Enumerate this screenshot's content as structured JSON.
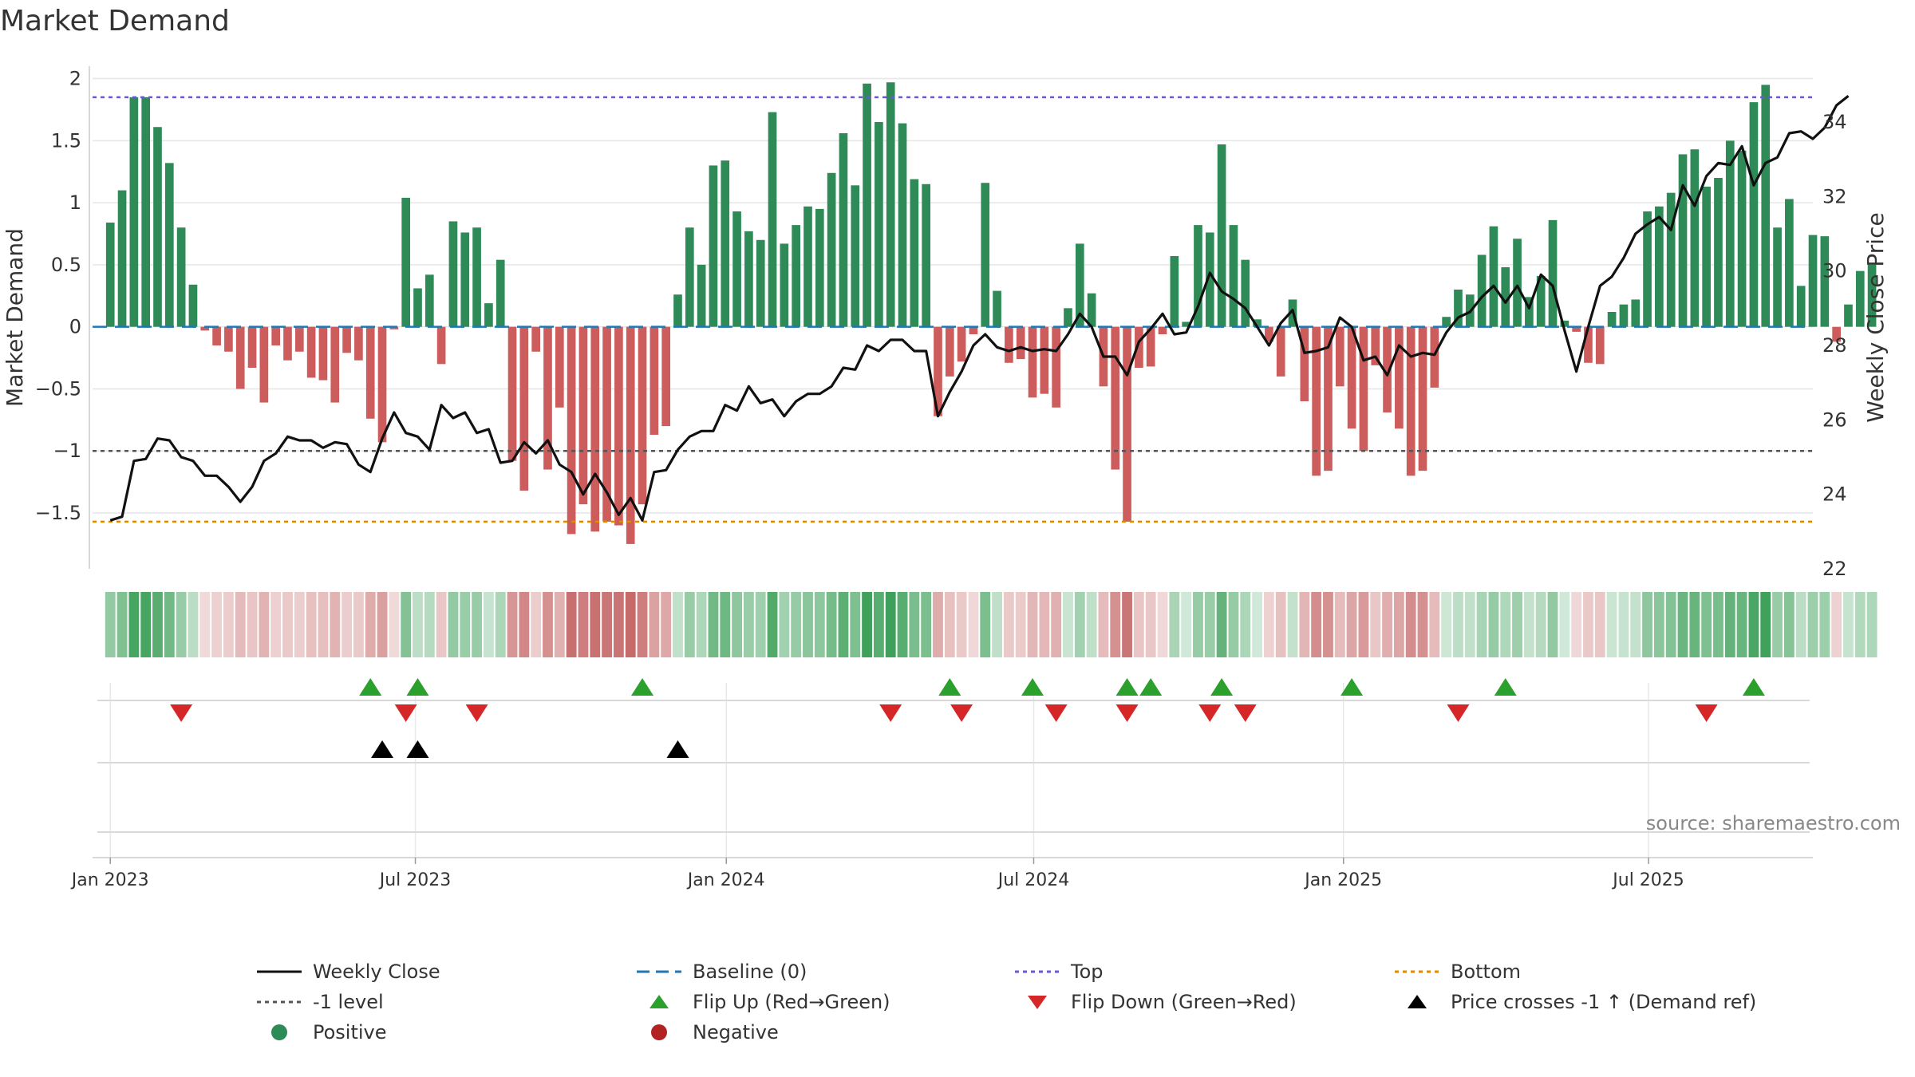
{
  "title": "Market Demand",
  "source": "source: sharemaestro.com",
  "colors": {
    "positive": "#2e8b57",
    "negative": "#cd5c5c",
    "price": "#111111",
    "baseline": "#1f77b4",
    "top": "#6a5acd",
    "minus1": "#555555",
    "bottom": "#e08a00",
    "flip_up": "#2ca02c",
    "flip_down": "#d62728",
    "cross": "#000000",
    "grid": "#e6e6e6"
  },
  "legend": [
    {
      "label": "Weekly Close",
      "kind": "line-solid",
      "color": "#111111"
    },
    {
      "label": "Baseline (0)",
      "kind": "line-dash",
      "color": "#1f77b4"
    },
    {
      "label": "Top",
      "kind": "line-dot",
      "color": "#6a5acd"
    },
    {
      "label": "Bottom",
      "kind": "line-dot",
      "color": "#e08a00"
    },
    {
      "label": "-1 level",
      "kind": "line-dot",
      "color": "#555555"
    },
    {
      "label": "Flip Up (Red→Green)",
      "kind": "tri-up",
      "color": "#2ca02c"
    },
    {
      "label": "Flip Down (Green→Red)",
      "kind": "tri-down",
      "color": "#d62728"
    },
    {
      "label": "Price crosses -1 ↑ (Demand ref)",
      "kind": "tri-up",
      "color": "#000000"
    },
    {
      "label": "Positive",
      "kind": "dot",
      "color": "#2e8b57"
    },
    {
      "label": "Negative",
      "kind": "dot",
      "color": "#b22222"
    }
  ],
  "chart_data": {
    "type": "bar",
    "title": "Market Demand",
    "ylabel": "Market Demand",
    "y2label": "Weekly Close Price",
    "ylim": [
      -1.95,
      2.1
    ],
    "y2lim": [
      22,
      35.5
    ],
    "yticks": [
      -1.5,
      -1,
      -0.5,
      0,
      0.5,
      1,
      1.5,
      2
    ],
    "ytick_labels": [
      "−1.5",
      "−1",
      "−0.5",
      "0",
      "0.5",
      "1",
      "1.5",
      "2"
    ],
    "y2ticks": [
      22,
      24,
      26,
      28,
      30,
      32,
      34
    ],
    "y2tick_labels": [
      "22",
      "24",
      "26",
      "28",
      "30",
      "32",
      "34"
    ],
    "x_start_week": -1.5,
    "x_end_week": 144,
    "xticks": [
      {
        "week": 0,
        "label": "Jan 2023"
      },
      {
        "week": 25.8,
        "label": "Jul 2023"
      },
      {
        "week": 52.1,
        "label": "Jan 2024"
      },
      {
        "week": 78.1,
        "label": "Jul 2024"
      },
      {
        "week": 104.3,
        "label": "Jan 2025"
      },
      {
        "week": 130.1,
        "label": "Jul 2025"
      }
    ],
    "reference_lines": {
      "baseline": 0,
      "top": 1.85,
      "minus1": -1,
      "bottom": -1.57
    },
    "demand": [
      0.84,
      1.1,
      1.85,
      1.85,
      1.61,
      1.32,
      0.8,
      0.34,
      -0.03,
      -0.15,
      -0.2,
      -0.5,
      -0.33,
      -0.61,
      -0.15,
      -0.27,
      -0.2,
      -0.41,
      -0.43,
      -0.61,
      -0.21,
      -0.27,
      -0.74,
      -0.93,
      -0.02,
      1.04,
      0.31,
      0.42,
      -0.3,
      0.85,
      0.76,
      0.8,
      0.19,
      0.54,
      -1.08,
      -1.32,
      -0.2,
      -1.15,
      -0.65,
      -1.67,
      -1.43,
      -1.65,
      -1.57,
      -1.6,
      -1.75,
      -1.43,
      -0.87,
      -0.8,
      0.26,
      0.8,
      0.5,
      1.3,
      1.34,
      0.93,
      0.77,
      0.7,
      1.73,
      0.67,
      0.82,
      0.97,
      0.95,
      1.24,
      1.56,
      1.14,
      1.96,
      1.65,
      1.97,
      1.64,
      1.19,
      1.15,
      -0.72,
      -0.4,
      -0.28,
      -0.06,
      1.16,
      0.29,
      -0.29,
      -0.26,
      -0.57,
      -0.54,
      -0.65,
      0.15,
      0.67,
      0.27,
      -0.48,
      -1.15,
      -1.57,
      -0.33,
      -0.32,
      -0.06,
      0.57,
      0.04,
      0.82,
      0.76,
      1.47,
      0.82,
      0.54,
      0.06,
      -0.12,
      -0.4,
      0.22,
      -0.6,
      -1.2,
      -1.16,
      -0.48,
      -0.82,
      -1.0,
      -0.31,
      -0.69,
      -0.82,
      -1.2,
      -1.16,
      -0.49,
      0.08,
      0.3,
      0.26,
      0.58,
      0.81,
      0.48,
      0.71,
      0.24,
      0.41,
      0.86,
      0.05,
      -0.04,
      -0.29,
      -0.3,
      0.12,
      0.18,
      0.22,
      0.93,
      0.97,
      1.08,
      1.39,
      1.43,
      1.13,
      1.2,
      1.5,
      1.42,
      1.81,
      1.95,
      0.8,
      1.03,
      0.33,
      0.74,
      0.73,
      -0.12,
      0.18,
      0.45,
      0.5
    ],
    "price": [
      23.3,
      23.4,
      24.9,
      24.95,
      25.5,
      25.45,
      25.0,
      24.9,
      24.5,
      24.5,
      24.2,
      23.8,
      24.2,
      24.9,
      25.1,
      25.55,
      25.45,
      25.45,
      25.25,
      25.4,
      25.35,
      24.8,
      24.6,
      25.5,
      26.2,
      25.65,
      25.55,
      25.2,
      26.4,
      26.05,
      26.2,
      25.65,
      25.75,
      24.85,
      24.9,
      25.4,
      25.1,
      25.45,
      24.8,
      24.6,
      24.0,
      24.55,
      24.05,
      23.45,
      23.9,
      23.3,
      24.6,
      24.65,
      25.2,
      25.55,
      25.7,
      25.7,
      26.4,
      26.25,
      26.9,
      26.45,
      26.55,
      26.1,
      26.5,
      26.7,
      26.7,
      26.9,
      27.4,
      27.35,
      28.0,
      27.85,
      28.15,
      28.15,
      27.85,
      27.85,
      26.1,
      26.75,
      27.3,
      28.0,
      28.3,
      27.95,
      27.85,
      27.95,
      27.85,
      27.9,
      27.85,
      28.3,
      28.85,
      28.5,
      27.7,
      27.7,
      27.2,
      28.1,
      28.45,
      28.85,
      28.3,
      28.35,
      29.05,
      29.95,
      29.45,
      29.25,
      29.0,
      28.5,
      28.0,
      28.6,
      28.95,
      27.8,
      27.85,
      27.95,
      28.75,
      28.5,
      27.6,
      27.7,
      27.2,
      28.0,
      27.7,
      27.8,
      27.75,
      28.35,
      28.75,
      28.9,
      29.3,
      29.6,
      29.15,
      29.6,
      29.0,
      29.9,
      29.6,
      28.4,
      27.3,
      28.5,
      29.6,
      29.85,
      30.35,
      31.0,
      31.25,
      31.45,
      31.1,
      32.3,
      31.75,
      32.55,
      32.9,
      32.85,
      33.35,
      32.3,
      32.9,
      33.05,
      33.7,
      33.75,
      33.55,
      33.85,
      34.45,
      34.7
    ],
    "flip_up_weeks": [
      22,
      26,
      45,
      71,
      78,
      86,
      88,
      94,
      105,
      118,
      139
    ],
    "flip_down_weeks": [
      6,
      25,
      31,
      66,
      72,
      80,
      86,
      93,
      96,
      114,
      135
    ],
    "price_cross_weeks": [
      23,
      26,
      48
    ]
  }
}
